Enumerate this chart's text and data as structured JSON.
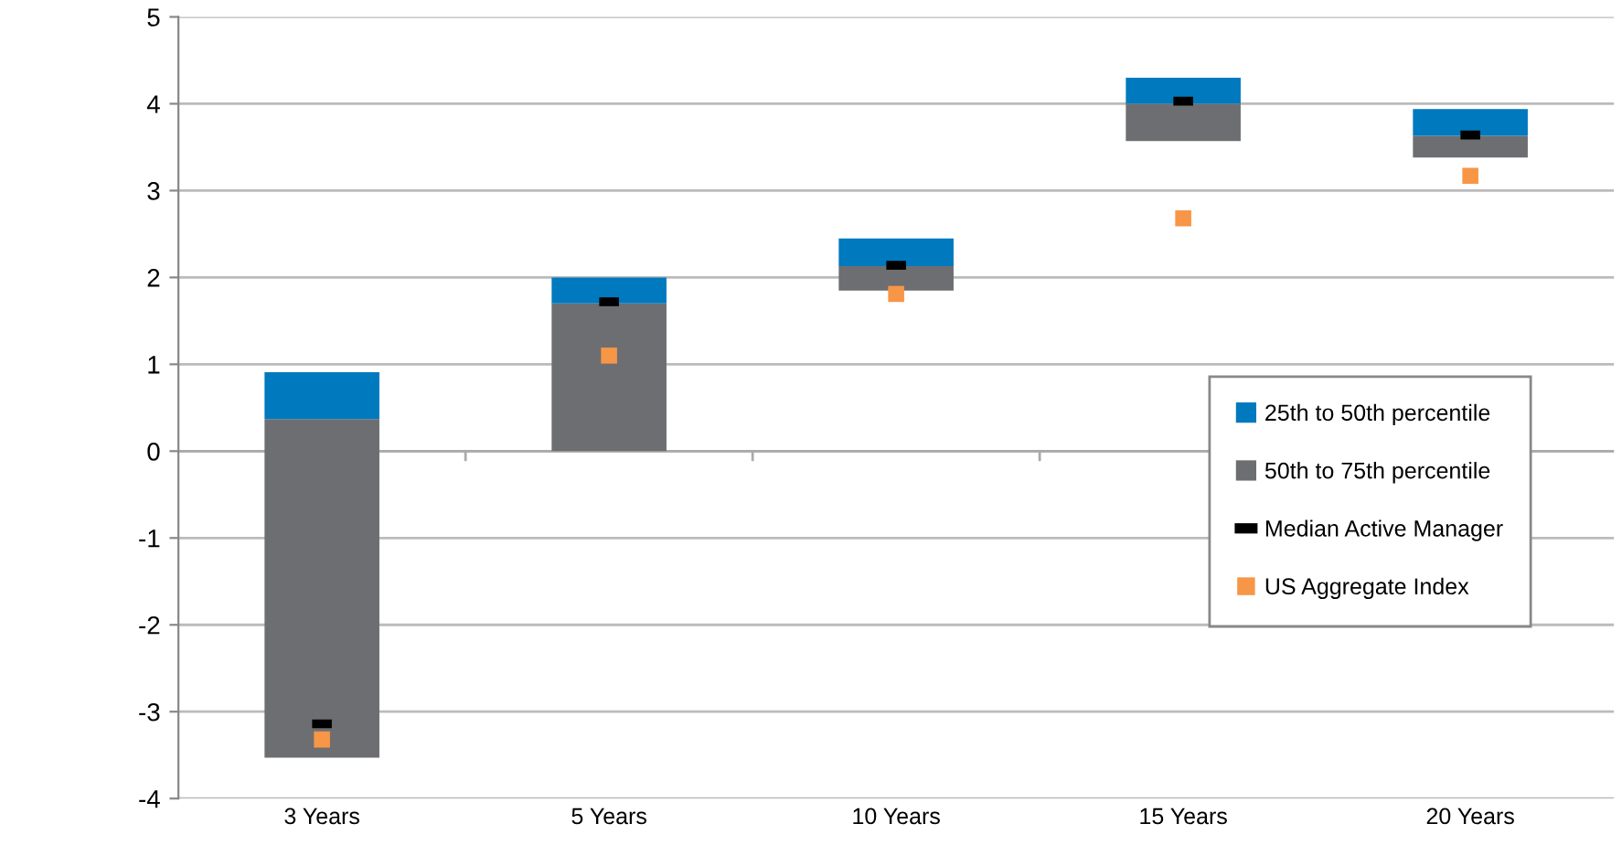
{
  "chart_data": {
    "type": "bar",
    "categories": [
      "3 Years",
      "5 Years",
      "10 Years",
      "15 Years",
      "20 Years"
    ],
    "series": [
      {
        "name": "50th to 75th percentile",
        "color": "#6d6e71",
        "base": [
          -3.53,
          0,
          1.85,
          3.57,
          3.38
        ],
        "values": [
          3.9,
          1.7,
          0.28,
          0.43,
          0.25
        ]
      },
      {
        "name": "25th to 50th percentile",
        "color": "#0079be",
        "base": [
          0.37,
          1.7,
          2.13,
          4.0,
          3.63
        ],
        "values": [
          0.54,
          0.3,
          0.32,
          0.3,
          0.31
        ]
      },
      {
        "name": "Median Active Manager",
        "type": "scatter",
        "color": "#000000",
        "values": [
          -3.14,
          1.72,
          2.14,
          4.03,
          3.64
        ]
      },
      {
        "name": "US Aggregate Index",
        "type": "scatter",
        "marker": "square",
        "color": "#f79646",
        "values": [
          -3.32,
          1.1,
          1.81,
          2.68,
          3.17
        ]
      }
    ],
    "ylim": [
      -4,
      5
    ],
    "yticks": [
      -4,
      -3,
      -2,
      -1,
      0,
      1,
      2,
      3,
      4,
      5
    ],
    "grid": "y",
    "legend": "right"
  }
}
